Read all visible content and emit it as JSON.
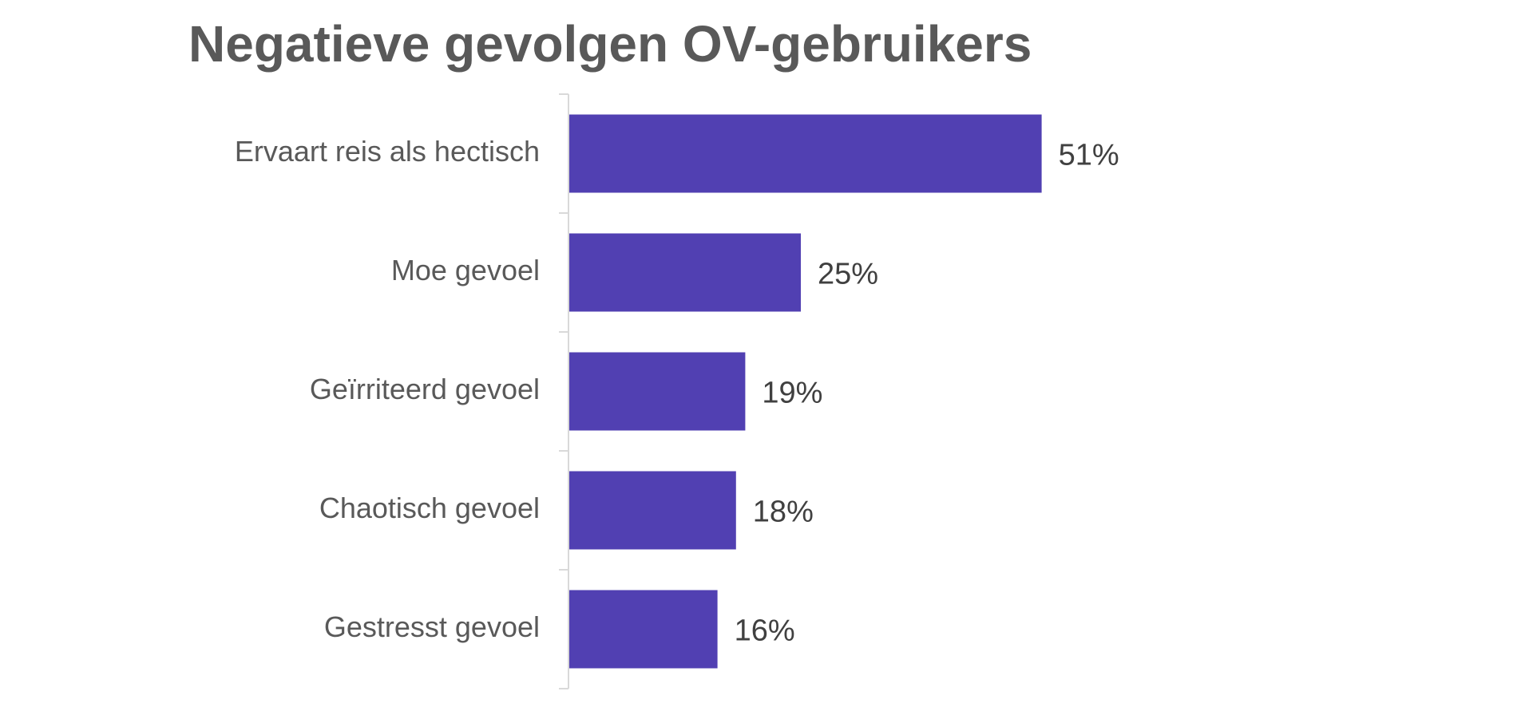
{
  "chart_data": {
    "type": "bar",
    "orientation": "horizontal",
    "title": "Negatieve gevolgen OV-gebruikers",
    "categories": [
      "Ervaart reis als hectisch",
      "Moe gevoel",
      "Geïrriteerd gevoel",
      "Chaotisch gevoel",
      "Gestresst gevoel"
    ],
    "values": [
      51,
      25,
      19,
      18,
      16
    ],
    "value_labels": [
      "51%",
      "25%",
      "19%",
      "18%",
      "16%"
    ],
    "bar_color": "#5140B2",
    "grid": false,
    "legend": "none"
  }
}
